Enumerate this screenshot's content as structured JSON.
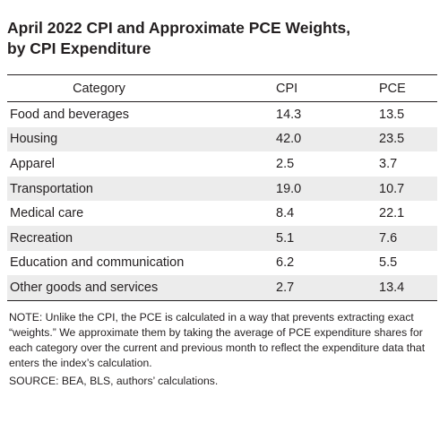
{
  "title": {
    "line1": "April 2022 CPI and Approximate PCE Weights,",
    "line2": "by CPI Expenditure"
  },
  "table": {
    "headers": {
      "category": "Category",
      "cpi": "CPI",
      "pce": "PCE"
    },
    "rows": [
      {
        "category": "Food and beverages",
        "cpi": "14.3",
        "pce": "13.5"
      },
      {
        "category": "Housing",
        "cpi": "42.0",
        "pce": "23.5"
      },
      {
        "category": "Apparel",
        "cpi": "2.5",
        "pce": "3.7"
      },
      {
        "category": "Transportation",
        "cpi": "19.0",
        "pce": "10.7"
      },
      {
        "category": "Medical care",
        "cpi": "8.4",
        "pce": "22.1"
      },
      {
        "category": "Recreation",
        "cpi": "5.1",
        "pce": "7.6"
      },
      {
        "category": "Education and communication",
        "cpi": "6.2",
        "pce": "5.5"
      },
      {
        "category": "Other goods and services",
        "cpi": "2.7",
        "pce": "13.4"
      }
    ]
  },
  "note": "NOTE: Unlike the CPI, the PCE is calculated in a way that prevents extracting exact “weights.” We approximate them by taking the average of PCE expenditure shares for each category over the current and previous month to reflect the expenditure data that enters the index’s calculation.",
  "source": "SOURCE: BEA, BLS, authors’ calculations.",
  "colors": {
    "text": "#231f20",
    "stripe": "#ececec",
    "rule": "#231f20"
  }
}
